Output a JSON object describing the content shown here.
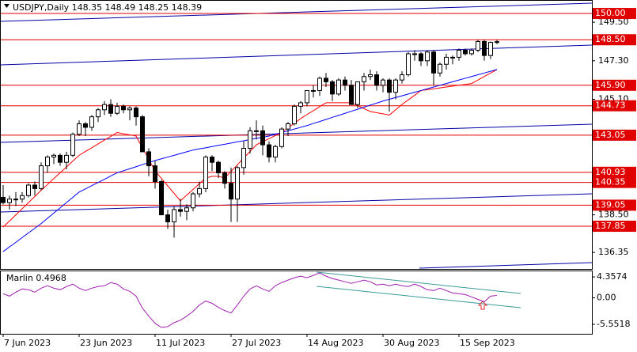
{
  "chart_data": [
    {
      "type": "candlestick",
      "title": "USDJPY,Daily  148.35 148.49 148.25 148.39",
      "categories": [
        "7 Jun 2023",
        null,
        null,
        null,
        null,
        null,
        null,
        null,
        null,
        null,
        null,
        null,
        "23 Jun 2023",
        null,
        null,
        null,
        null,
        null,
        null,
        null,
        null,
        null,
        null,
        null,
        "11 Jul 2023",
        null,
        null,
        null,
        null,
        null,
        null,
        null,
        null,
        null,
        null,
        null,
        "27 Jul 2023",
        null,
        null,
        null,
        null,
        null,
        null,
        null,
        null,
        null,
        null,
        null,
        "14 Aug 2023",
        null,
        null,
        null,
        null,
        null,
        null,
        null,
        null,
        null,
        null,
        null,
        "30 Aug 2023",
        null,
        null,
        null,
        null,
        null,
        null,
        null,
        null,
        null,
        null,
        null,
        "15 Sep 2023",
        null,
        null,
        null,
        null,
        null,
        null
      ],
      "open": [
        139.5,
        139.2,
        139.4,
        139.4,
        139.6,
        140.2,
        140.0,
        141.3,
        141.8,
        141.9,
        141.5,
        141.9,
        143.1,
        143.7,
        143.5,
        144.1,
        144.5,
        144.8,
        144.3,
        144.7,
        144.5,
        144.6,
        144.1,
        142.1,
        141.3,
        140.4,
        138.5,
        138.1,
        138.8,
        138.7,
        138.9,
        139.7,
        140.0,
        141.8,
        141.5,
        140.9,
        140.3,
        139.4,
        141.2,
        142.3,
        143.3,
        143.3,
        142.5,
        141.8,
        142.4,
        143.4,
        143.7,
        144.7,
        144.9,
        145.6,
        145.6,
        146.3,
        146.1,
        145.4,
        146.2,
        145.9,
        144.8,
        146.1,
        146.4,
        146.5,
        145.9,
        146.2,
        145.5,
        146.2,
        146.5,
        147.7,
        147.7,
        147.3,
        147.8,
        146.6,
        147.1,
        147.5,
        147.5,
        147.9,
        147.7,
        147.9,
        148.4,
        147.6,
        148.35
      ],
      "high": [
        140.2,
        139.6,
        139.8,
        139.8,
        140.3,
        140.4,
        141.5,
        141.9,
        142.0,
        142.0,
        142.1,
        143.2,
        143.9,
        143.8,
        144.2,
        144.6,
        145.0,
        145.1,
        144.9,
        144.8,
        144.7,
        144.7,
        144.2,
        142.3,
        141.6,
        140.5,
        138.8,
        139.0,
        139.4,
        139.1,
        139.8,
        140.4,
        141.9,
        141.9,
        141.6,
        141.0,
        141.2,
        141.3,
        142.7,
        143.5,
        143.9,
        143.6,
        142.7,
        142.5,
        143.5,
        143.8,
        144.8,
        145.0,
        145.6,
        145.9,
        146.4,
        146.6,
        146.2,
        146.3,
        146.4,
        146.2,
        146.1,
        146.6,
        146.8,
        146.7,
        146.3,
        146.3,
        146.3,
        146.7,
        147.8,
        147.9,
        147.8,
        147.9,
        147.9,
        147.2,
        147.7,
        147.6,
        148.0,
        148.0,
        148.0,
        148.5,
        148.5,
        148.4,
        148.49
      ],
      "low": [
        139.1,
        138.8,
        139.0,
        139.2,
        139.5,
        139.6,
        139.9,
        140.9,
        141.4,
        141.3,
        141.1,
        141.8,
        143.0,
        143.0,
        143.3,
        143.8,
        144.2,
        144.1,
        144.2,
        144.3,
        143.9,
        143.6,
        142.1,
        140.7,
        140.0,
        138.5,
        137.7,
        137.2,
        138.4,
        138.2,
        138.7,
        139.5,
        139.8,
        141.0,
        140.6,
        140.0,
        138.1,
        138.1,
        140.8,
        142.0,
        142.8,
        141.9,
        141.5,
        141.5,
        142.3,
        143.0,
        143.6,
        144.3,
        144.7,
        145.2,
        145.3,
        145.8,
        145.0,
        145.3,
        145.6,
        144.8,
        144.6,
        145.6,
        146.2,
        145.6,
        145.5,
        144.4,
        145.1,
        146.0,
        146.4,
        147.3,
        147.0,
        147.0,
        145.9,
        146.4,
        146.8,
        147.1,
        147.3,
        147.6,
        147.6,
        147.8,
        147.3,
        147.4,
        148.25
      ],
      "close": [
        139.2,
        139.4,
        139.4,
        139.6,
        140.2,
        140.0,
        141.3,
        141.8,
        141.9,
        141.5,
        141.9,
        143.1,
        143.7,
        143.5,
        144.1,
        144.5,
        144.8,
        144.3,
        144.7,
        144.5,
        144.6,
        144.1,
        142.1,
        141.3,
        140.4,
        138.5,
        138.1,
        138.8,
        138.7,
        138.9,
        139.7,
        140.0,
        141.8,
        141.5,
        140.9,
        140.3,
        139.4,
        141.2,
        142.3,
        143.3,
        143.3,
        142.5,
        141.8,
        142.4,
        143.4,
        143.7,
        144.7,
        144.9,
        145.6,
        145.6,
        146.3,
        146.1,
        145.4,
        146.2,
        145.9,
        144.8,
        146.1,
        146.4,
        146.5,
        145.9,
        146.2,
        145.5,
        146.2,
        146.5,
        147.7,
        147.7,
        147.3,
        147.8,
        146.6,
        147.1,
        147.5,
        147.5,
        147.9,
        147.7,
        147.9,
        148.4,
        147.6,
        148.35,
        148.39
      ],
      "up_color": "#ffffff",
      "down_color": "#000000",
      "overlays": [
        {
          "color": "#ff0000",
          "values": [
            137.8,
            138.15,
            138.5,
            138.85,
            139.2,
            139.55,
            139.9,
            140.23,
            140.57,
            140.9,
            141.23,
            141.57,
            141.9,
            142.12,
            142.33,
            142.55,
            142.77,
            142.98,
            143.2,
            143.13,
            143.07,
            143.0,
            142.33,
            141.67,
            141.0,
            140.58,
            140.15,
            139.73,
            139.3,
            139.63,
            139.95,
            140.28,
            140.6,
            140.7,
            140.7,
            140.6,
            140.98,
            141.36,
            141.74,
            142.12,
            142.5,
            142.68,
            142.85,
            143.03,
            143.2,
            143.47,
            143.73,
            144.0,
            144.23,
            144.45,
            144.68,
            144.9,
            144.9,
            144.9,
            144.9,
            144.9,
            144.73,
            144.57,
            144.4,
            144.33,
            144.27,
            144.2,
            144.5,
            144.8,
            145.07,
            145.33,
            145.6,
            145.65,
            145.7,
            145.75,
            145.8,
            145.85,
            145.9,
            145.95,
            146.0,
            146.2,
            146.4,
            146.6,
            146.8
          ]
        },
        {
          "color": "#0000ff",
          "values": [
            136.4,
            136.67,
            136.93,
            137.2,
            137.47,
            137.73,
            138.0,
            138.3,
            138.6,
            138.9,
            139.2,
            139.5,
            139.8,
            139.98,
            140.17,
            140.35,
            140.53,
            140.72,
            140.9,
            141.02,
            141.13,
            141.25,
            141.37,
            141.48,
            141.6,
            141.7,
            141.8,
            141.9,
            142.0,
            142.1,
            142.2,
            142.27,
            142.33,
            142.4,
            142.47,
            142.53,
            142.6,
            142.67,
            142.73,
            142.8,
            142.87,
            142.93,
            143.0,
            143.1,
            143.2,
            143.3,
            143.4,
            143.5,
            143.6,
            143.72,
            143.83,
            143.95,
            144.07,
            144.18,
            144.3,
            144.42,
            144.53,
            144.65,
            144.77,
            144.88,
            145.0,
            145.1,
            145.2,
            145.3,
            145.4,
            145.5,
            145.6,
            145.7,
            145.8,
            145.9,
            146.0,
            146.1,
            146.2,
            146.3,
            146.4,
            146.5,
            146.6,
            146.7,
            146.8
          ]
        }
      ],
      "levels": {
        "color": "#e00000",
        "values": [
          {
            "value": 150,
            "label": "150.00"
          },
          {
            "value": 148.5,
            "label": "148.50"
          },
          {
            "value": 145.9,
            "label": "145.90"
          },
          144.73,
          143.05,
          140.93,
          140.35,
          139.05,
          137.85
        ]
      },
      "ylim": [
        135.41,
        150.77
      ],
      "yticks": [
        {
          "value": 149.5,
          "label": "149.50"
        },
        {
          "value": 147.3,
          "label": "147.30"
        },
        {
          "value": 145.1,
          "label": "145.10"
        },
        {
          "value": 138.5,
          "label": "138.50"
        },
        136.35
      ]
    },
    {
      "type": "line",
      "title": "Marlin 0.4968",
      "color": "#a020b0",
      "values": [
        0.84,
        0.34,
        1.17,
        1.84,
        1.68,
        1.17,
        2.01,
        2.51,
        2.01,
        1.68,
        2.35,
        2.85,
        2.01,
        1.51,
        2.01,
        2.35,
        2.51,
        3.18,
        2.85,
        1.84,
        1.34,
        0.34,
        -2.18,
        -3.85,
        -5.36,
        -6.2,
        -6.03,
        -5.2,
        -4.69,
        -3.85,
        -2.85,
        -1.51,
        -0.67,
        -1.17,
        -2.01,
        -2.68,
        -3.18,
        -1.51,
        0.34,
        1.84,
        2.51,
        1.84,
        1.34,
        2.51,
        3.18,
        3.69,
        4.19,
        4.52,
        4.19,
        4.69,
        5.2,
        4.52,
        4.02,
        3.69,
        3.35,
        3.02,
        3.35,
        3.69,
        3.35,
        2.68,
        2.85,
        2.51,
        2.85,
        2.51,
        2.35,
        2.85,
        2.35,
        1.68,
        1.51,
        2.01,
        1.51,
        1.01,
        0.84,
        0.67,
        0.17,
        -0.34,
        -0.84,
        0.34,
        0.4968
      ],
      "ylim": [
        -7.54,
        5.7
      ],
      "yticks": [
        4.3574,
        {
          "value": 0,
          "label": "0.00"
        },
        -5.5518
      ]
    }
  ]
}
